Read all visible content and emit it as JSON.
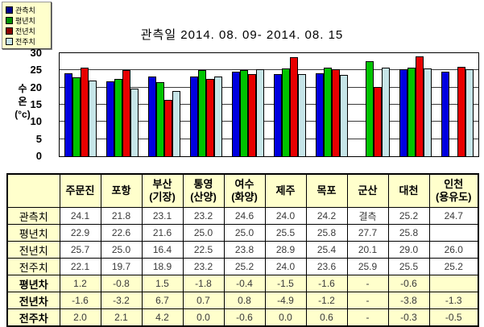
{
  "chart_data": {
    "type": "bar",
    "title": "관측일 2014. 08. 09-  2014. 08. 15",
    "categories": [
      "주문진",
      "포항",
      "부산(기장)",
      "통영(산양)",
      "여수(화양)",
      "제주",
      "목포",
      "군산",
      "대천",
      "인천(용유도)"
    ],
    "series": [
      {
        "name": "관측치",
        "color": "#0000E0",
        "values": [
          24.1,
          21.8,
          23.1,
          23.2,
          24.6,
          24.0,
          24.2,
          null,
          25.2,
          24.7
        ]
      },
      {
        "name": "평년치",
        "color": "#00C400",
        "values": [
          22.9,
          22.6,
          21.6,
          25.0,
          25.0,
          25.5,
          25.8,
          27.7,
          25.8,
          null
        ]
      },
      {
        "name": "전년치",
        "color": "#E80000",
        "values": [
          25.7,
          25.0,
          16.4,
          22.5,
          23.8,
          28.9,
          25.4,
          20.1,
          29.0,
          26.0
        ]
      },
      {
        "name": "전주치",
        "color": "#C6E5E8",
        "values": [
          22.1,
          19.7,
          18.9,
          23.2,
          25.2,
          24.0,
          23.6,
          25.9,
          25.5,
          25.2
        ]
      }
    ],
    "ylabel": "수\n온\n(°c)",
    "ylim": [
      0,
      30
    ],
    "yticks": [
      0,
      5,
      10,
      15,
      20,
      25,
      30
    ],
    "grid": "horizontal",
    "legend_position": "top-left"
  },
  "legend": {
    "items": [
      {
        "label": "관측치",
        "color": "#00008B"
      },
      {
        "label": "평년치",
        "color": "#009000"
      },
      {
        "label": "전년치",
        "color": "#8B0000"
      },
      {
        "label": "전주치",
        "color": "#C6E5E8"
      }
    ]
  },
  "table": {
    "col_headers": [
      "",
      "주문진",
      "포항",
      "부산\n(기장)",
      "통영\n(산양)",
      "여수\n(화양)",
      "제주",
      "목포",
      "군산",
      "대천",
      "인천\n(용유도)"
    ],
    "rows": [
      {
        "label": "관측치",
        "highlight": false,
        "cells": [
          "24.1",
          "21.8",
          "23.1",
          "23.2",
          "24.6",
          "24.0",
          "24.2",
          "결측",
          "25.2",
          "24.7"
        ]
      },
      {
        "label": "평년치",
        "highlight": false,
        "cells": [
          "22.9",
          "22.6",
          "21.6",
          "25.0",
          "25.0",
          "25.5",
          "25.8",
          "27.7",
          "25.8",
          ""
        ]
      },
      {
        "label": "전년치",
        "highlight": false,
        "cells": [
          "25.7",
          "25.0",
          "16.4",
          "22.5",
          "23.8",
          "28.9",
          "25.4",
          "20.1",
          "29.0",
          "26.0"
        ]
      },
      {
        "label": "전주치",
        "highlight": false,
        "cells": [
          "22.1",
          "19.7",
          "18.9",
          "23.2",
          "25.2",
          "24.0",
          "23.6",
          "25.9",
          "25.5",
          "25.2"
        ]
      },
      {
        "label": "평년차",
        "highlight": true,
        "cells": [
          "1.2",
          "-0.8",
          "1.5",
          "-1.8",
          "-0.4",
          "-1.5",
          "-1.6",
          "-",
          "-0.6",
          ""
        ]
      },
      {
        "label": "전년차",
        "highlight": true,
        "cells": [
          "-1.6",
          "-3.2",
          "6.7",
          "0.7",
          "0.8",
          "-4.9",
          "-1.2",
          "-",
          "-3.8",
          "-1.3"
        ]
      },
      {
        "label": "전주차",
        "highlight": true,
        "cells": [
          "2.0",
          "2.1",
          "4.2",
          "0.0",
          "-0.6",
          "0.0",
          "0.6",
          "-",
          "-0.3",
          "-0.5"
        ]
      }
    ]
  },
  "colors": {
    "panel_yellow": "#FFFFCC",
    "bar_blue": "#0000E0",
    "bar_green": "#00C400",
    "bar_red": "#E80000",
    "bar_pale": "#C6E5E8"
  }
}
